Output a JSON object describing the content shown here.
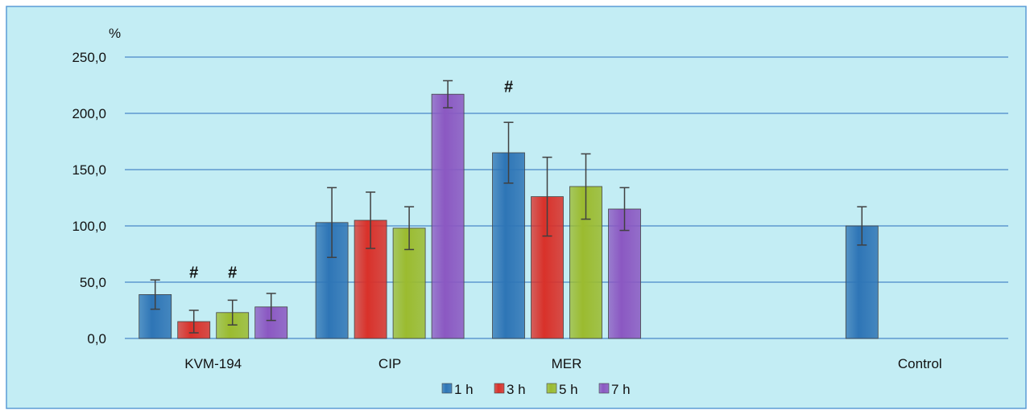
{
  "chart_data": {
    "type": "bar",
    "unit_label": "%",
    "categories": [
      "KVM-194",
      "CIP",
      "MER",
      "",
      "Control"
    ],
    "ylim": [
      0,
      250
    ],
    "yticks": [
      0,
      50,
      100,
      150,
      200,
      250
    ],
    "ytick_labels": [
      "0,0",
      "50,0",
      "100,0",
      "150,0",
      "200,0",
      "250,0"
    ],
    "grid": true,
    "legend_position": "bottom",
    "series": [
      {
        "name": "1 h",
        "color": "#2E75B6",
        "values": [
          39,
          103,
          165,
          null,
          100
        ],
        "errors": [
          13,
          31,
          27,
          null,
          17
        ]
      },
      {
        "name": "3 h",
        "color": "#D9312A",
        "values": [
          15,
          105,
          126,
          null,
          null
        ],
        "errors": [
          10,
          25,
          35,
          null,
          null
        ]
      },
      {
        "name": "5 h",
        "color": "#9BBB2F",
        "values": [
          23,
          98,
          135,
          null,
          null
        ],
        "errors": [
          11,
          19,
          29,
          null,
          null
        ]
      },
      {
        "name": "7 h",
        "color": "#8B58C2",
        "values": [
          28,
          217,
          115,
          null,
          null
        ],
        "errors": [
          12,
          12,
          19,
          null,
          null
        ]
      }
    ],
    "annotations": [
      {
        "text": "#",
        "category": 0,
        "series": 1,
        "value": 54
      },
      {
        "text": "#",
        "category": 0,
        "series": 2,
        "value": 54
      },
      {
        "text": "#",
        "category": 2,
        "series": 0,
        "value": 219
      }
    ],
    "colors": {
      "background": "#C3EDF4",
      "gridline": "#4A87C8",
      "frame": "#5B9BD5",
      "error_bar": "#404040"
    }
  }
}
